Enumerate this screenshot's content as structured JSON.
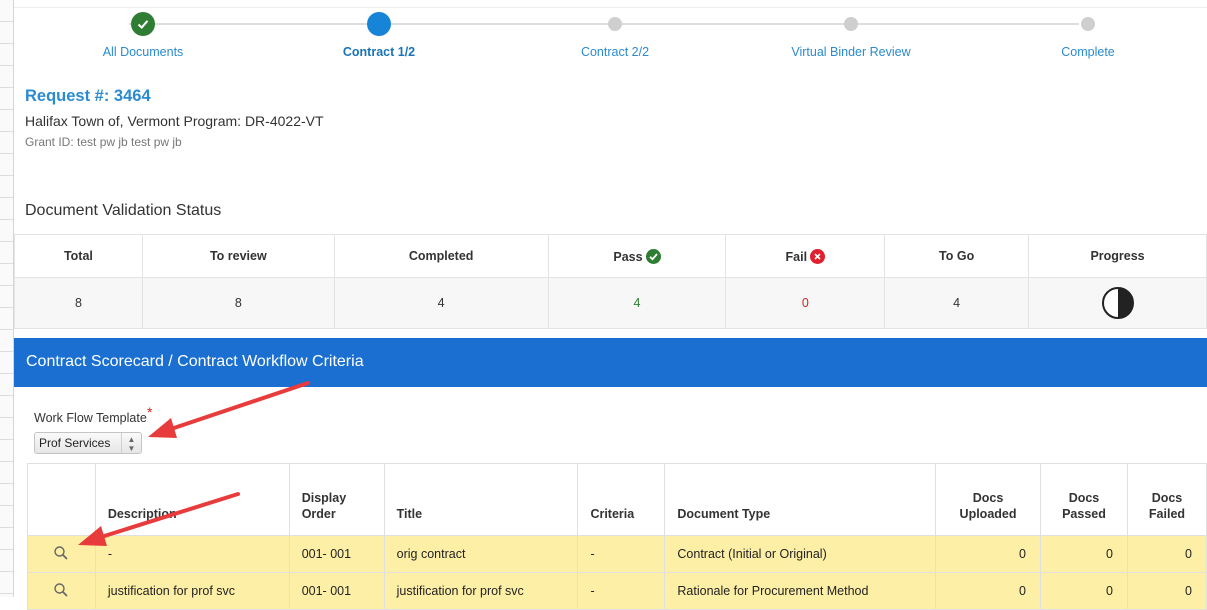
{
  "stepper": {
    "steps": [
      {
        "label": "All Documents",
        "state": "done"
      },
      {
        "label": "Contract 1/2",
        "state": "active"
      },
      {
        "label": "Contract 2/2",
        "state": "todo"
      },
      {
        "label": "Virtual Binder Review",
        "state": "todo"
      },
      {
        "label": "Complete",
        "state": "todo"
      }
    ]
  },
  "request": {
    "title": "Request #: 3464",
    "subtitle": "Halifax Town of, Vermont Program: DR-4022-VT",
    "grant": "Grant ID: test pw jb test pw jb"
  },
  "validation": {
    "title": "Document Validation Status",
    "headers": {
      "total": "Total",
      "to_review": "To review",
      "completed": "Completed",
      "pass": "Pass",
      "fail": "Fail",
      "to_go": "To Go",
      "progress": "Progress"
    },
    "values": {
      "total": "8",
      "to_review": "8",
      "completed": "4",
      "pass": "4",
      "fail": "0",
      "to_go": "4"
    },
    "progress_fraction": 0.5
  },
  "scorecard": {
    "title": "Contract Scorecard / Contract Workflow Criteria",
    "workflow_label": "Work Flow Template",
    "required_mark": "*",
    "workflow_value": "Prof Services",
    "columns": {
      "description": "Description",
      "display_order_1": "Display",
      "display_order_2": "Order",
      "title": "Title",
      "criteria": "Criteria",
      "document_type": "Document Type",
      "docs_uploaded_1": "Docs",
      "docs_uploaded_2": "Uploaded",
      "docs_passed_1": "Docs",
      "docs_passed_2": "Passed",
      "docs_failed_1": "Docs",
      "docs_failed_2": "Failed"
    },
    "rows": [
      {
        "description": "-",
        "display_order": "001- 001",
        "title": "orig contract",
        "criteria": "-",
        "document_type": "Contract (Initial or Original)",
        "uploaded": "0",
        "passed": "0",
        "failed": "0"
      },
      {
        "description": "justification for prof svc",
        "display_order": "001- 001",
        "title": "justification for prof svc",
        "criteria": "-",
        "document_type": "Rationale for Procurement Method",
        "uploaded": "0",
        "passed": "0",
        "failed": "0"
      }
    ]
  },
  "colors": {
    "accent": "#1a6fd1",
    "link": "#2a8bd0",
    "done": "#2e7d32",
    "fail": "#e0202f",
    "row_highlight": "#fdf0a6",
    "annotation_arrow": "#e83b3b"
  }
}
